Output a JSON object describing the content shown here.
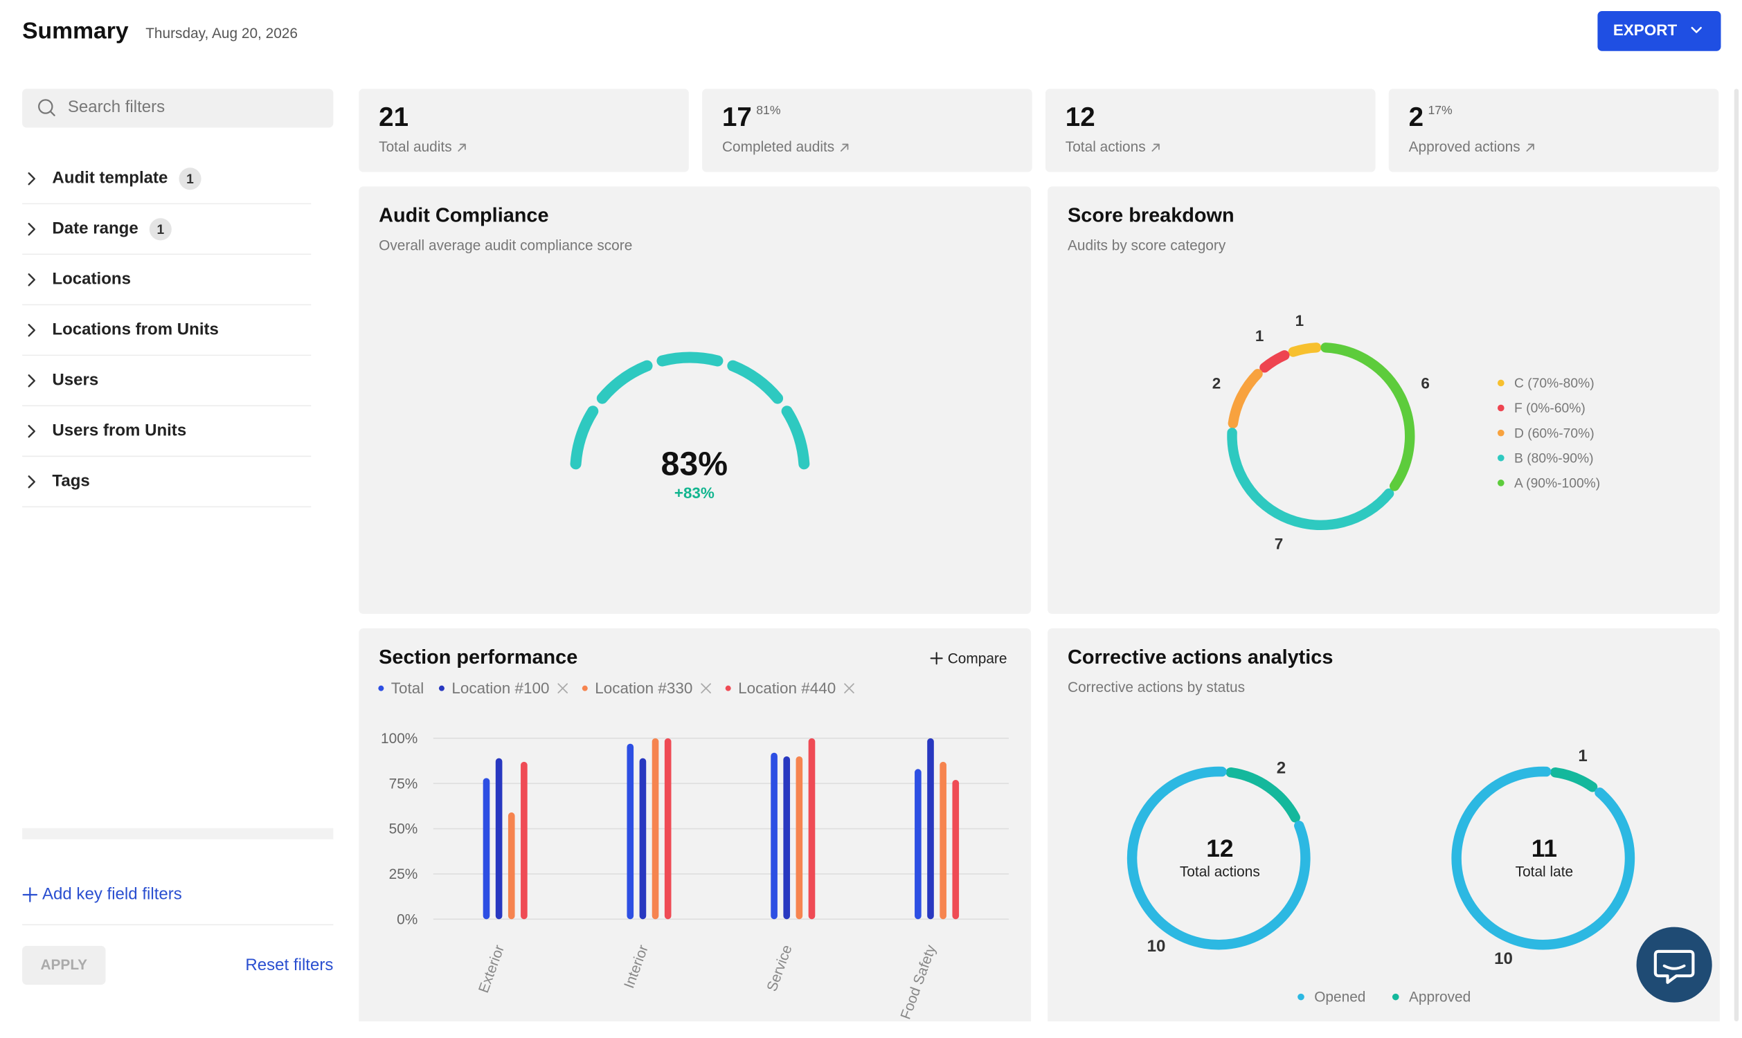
{
  "header": {
    "title": "Summary",
    "date": "Thursday, Aug 20, 2026",
    "export": "EXPORT"
  },
  "sidebar": {
    "search_placeholder": "Search filters",
    "filters": [
      {
        "label": "Audit template",
        "count": 1
      },
      {
        "label": "Date range",
        "count": 1
      },
      {
        "label": "Locations"
      },
      {
        "label": "Locations from Units"
      },
      {
        "label": "Users"
      },
      {
        "label": "Users from Units"
      },
      {
        "label": "Tags"
      }
    ],
    "add_filters": "Add key field filters",
    "apply": "APPLY",
    "reset": "Reset filters"
  },
  "stats": [
    {
      "value": 21,
      "label": "Total audits"
    },
    {
      "value": 17,
      "pct": "81%",
      "label": "Completed audits"
    },
    {
      "value": 12,
      "label": "Total actions"
    },
    {
      "value": 2,
      "pct": "17%",
      "label": "Approved actions"
    }
  ],
  "chart_data": [
    {
      "type": "gauge",
      "title": "Audit Compliance",
      "subtitle": "Overall average audit compliance score",
      "value": 83,
      "value_label": "83%",
      "change": "+83%",
      "color": "#2ec9c0",
      "change_color": "#13b58f"
    },
    {
      "type": "donut",
      "title": "Score breakdown",
      "subtitle": "Audits by score category",
      "categories": [
        "C (70%-80%)",
        "F (0%-60%)",
        "D (60%-70%)",
        "B (80%-90%)",
        "A (90%-100%)"
      ],
      "values": [
        1,
        1,
        2,
        7,
        6
      ],
      "colors": [
        "#f7c02e",
        "#ee4450",
        "#f8a23e",
        "#2ec9c0",
        "#5dcc3c"
      ]
    },
    {
      "type": "bar",
      "title": "Section performance",
      "action": "Compare",
      "categories": [
        "Exterior",
        "Interior",
        "Service",
        "Food Safety"
      ],
      "series": [
        {
          "name": "Total",
          "color": "#2d4fe3",
          "values": [
            78,
            97,
            92,
            83
          ]
        },
        {
          "name": "Location #100",
          "color": "#2838c0",
          "values": [
            89,
            89,
            90,
            100
          ]
        },
        {
          "name": "Location #330",
          "color": "#f6844f",
          "values": [
            59,
            100,
            90,
            87
          ]
        },
        {
          "name": "Location #440",
          "color": "#ef4b55",
          "values": [
            87,
            100,
            100,
            77
          ]
        }
      ],
      "ylim": [
        0,
        100
      ],
      "yticks": [
        {
          "value": 0,
          "label": "0%"
        },
        {
          "value": 25,
          "label": "25%"
        },
        {
          "value": 50,
          "label": "50%"
        },
        {
          "value": 75,
          "label": "75%"
        },
        {
          "value": 100,
          "label": "100%"
        }
      ],
      "grid": true
    },
    {
      "type": "donut_pair",
      "title": "Corrective actions analytics",
      "subtitle": "Corrective actions by status",
      "categories": [
        "Total actions",
        "Total late"
      ],
      "totals": [
        12,
        11
      ],
      "series": [
        {
          "name": "Opened",
          "color": "#2cb8e2",
          "values": [
            10,
            10
          ]
        },
        {
          "name": "Approved",
          "color": "#14b89c",
          "values": [
            2,
            1
          ]
        }
      ]
    }
  ]
}
